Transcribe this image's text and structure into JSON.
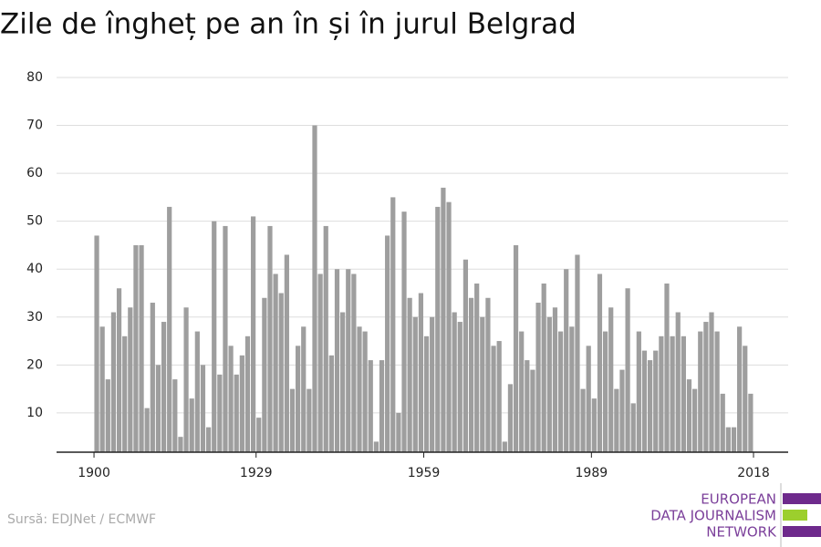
{
  "chart_data": {
    "type": "bar",
    "title": "Zile de îngheț pe an în și în jurul Belgrad",
    "x": [
      1900,
      1901,
      1902,
      1903,
      1904,
      1905,
      1906,
      1907,
      1908,
      1909,
      1910,
      1911,
      1912,
      1913,
      1914,
      1915,
      1916,
      1917,
      1918,
      1919,
      1920,
      1921,
      1922,
      1923,
      1924,
      1925,
      1926,
      1927,
      1928,
      1929,
      1930,
      1931,
      1932,
      1933,
      1934,
      1935,
      1936,
      1937,
      1938,
      1939,
      1940,
      1941,
      1942,
      1943,
      1944,
      1945,
      1946,
      1947,
      1948,
      1949,
      1950,
      1951,
      1952,
      1953,
      1954,
      1955,
      1956,
      1957,
      1958,
      1959,
      1960,
      1961,
      1962,
      1963,
      1964,
      1965,
      1966,
      1967,
      1968,
      1969,
      1970,
      1971,
      1972,
      1973,
      1974,
      1975,
      1976,
      1977,
      1978,
      1979,
      1980,
      1981,
      1982,
      1983,
      1984,
      1985,
      1986,
      1987,
      1988,
      1989,
      1990,
      1991,
      1992,
      1993,
      1994,
      1995,
      1996,
      1997,
      1998,
      1999,
      2000,
      2001,
      2002,
      2003,
      2004,
      2005,
      2006,
      2007,
      2008,
      2009,
      2010,
      2011,
      2012,
      2013,
      2014,
      2015,
      2016,
      2017
    ],
    "values": [
      47,
      28,
      17,
      31,
      36,
      26,
      32,
      45,
      45,
      11,
      33,
      20,
      29,
      53,
      17,
      5,
      32,
      13,
      27,
      20,
      7,
      50,
      18,
      49,
      24,
      18,
      22,
      26,
      51,
      9,
      34,
      49,
      39,
      35,
      43,
      15,
      24,
      28,
      15,
      70,
      39,
      49,
      22,
      40,
      31,
      40,
      39,
      28,
      27,
      21,
      4,
      21,
      47,
      55,
      10,
      52,
      34,
      30,
      35,
      26,
      30,
      53,
      57,
      54,
      31,
      29,
      42,
      34,
      37,
      30,
      34,
      24,
      25,
      4,
      16,
      45,
      27,
      21,
      19,
      33,
      37,
      30,
      32,
      27,
      40,
      28,
      43,
      15,
      24,
      13,
      39,
      27,
      32,
      15,
      19,
      36,
      12,
      27,
      23,
      21,
      23,
      26,
      37,
      26,
      31,
      26,
      17,
      15,
      27,
      29,
      31,
      27,
      14,
      7,
      7,
      28,
      24,
      14
    ],
    "color": "#9e9e9e",
    "xlim": [
      1893.3,
      2024.2
    ],
    "xticks": [
      1900,
      1929,
      1959,
      1989,
      2018
    ],
    "ylim": [
      1.8,
      80
    ],
    "yticks": [
      10,
      20,
      30,
      40,
      50,
      60,
      70,
      80
    ],
    "grid": true,
    "source": "Sursă: EDJNet / ECMWF",
    "logo": [
      "EUROPEAN",
      "DATA JOURNALISM",
      "NETWORK"
    ]
  }
}
